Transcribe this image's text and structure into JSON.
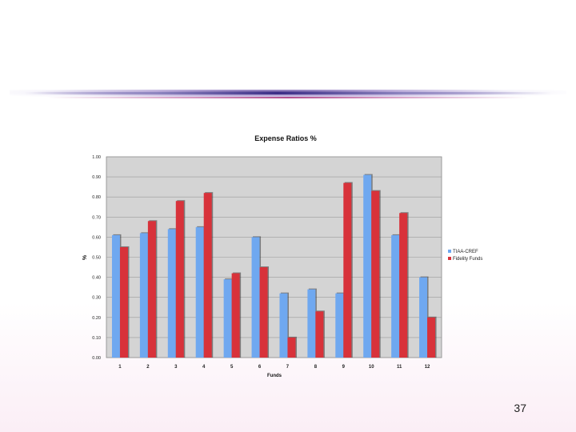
{
  "slide": {
    "page_number": "37"
  },
  "chart_data": {
    "type": "bar",
    "title": "Expense Ratios %",
    "xlabel": "Funds",
    "ylabel": "%",
    "categories": [
      "1",
      "2",
      "3",
      "4",
      "5",
      "6",
      "7",
      "8",
      "9",
      "10",
      "11",
      "12"
    ],
    "yticks": [
      "0.00",
      "0.10",
      "0.20",
      "0.30",
      "0.40",
      "0.50",
      "0.60",
      "0.70",
      "0.80",
      "0.90",
      "1.00"
    ],
    "ylim": [
      0,
      1.0
    ],
    "grid": true,
    "legend": "right",
    "series": [
      {
        "name": "TIAA-CREF",
        "color": "#6fa8f0",
        "values": [
          0.61,
          0.62,
          0.64,
          0.65,
          0.39,
          0.6,
          0.32,
          0.34,
          0.32,
          0.91,
          0.61,
          0.4
        ]
      },
      {
        "name": "Fidelity Funds",
        "color": "#d8323a",
        "values": [
          0.55,
          0.68,
          0.78,
          0.82,
          0.42,
          0.45,
          0.1,
          0.23,
          0.87,
          0.83,
          0.72,
          0.2
        ]
      }
    ],
    "plot_background": "#d4d4d4"
  }
}
